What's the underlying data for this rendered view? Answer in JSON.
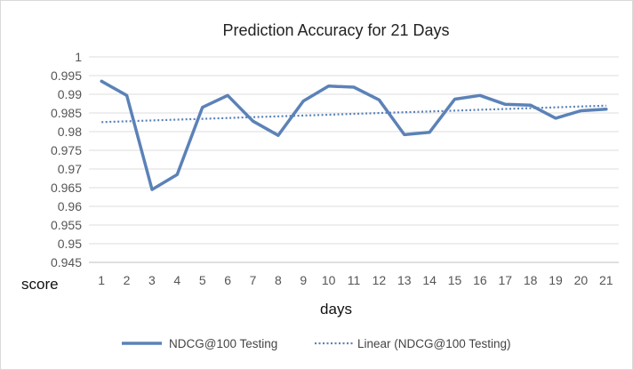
{
  "chart_data": {
    "type": "line",
    "title": "Prediction Accuracy for 21 Days",
    "xlabel": "days",
    "ylabel": "score",
    "x": [
      1,
      2,
      3,
      4,
      5,
      6,
      7,
      8,
      9,
      10,
      11,
      12,
      13,
      14,
      15,
      16,
      17,
      18,
      19,
      20,
      21
    ],
    "ylim": [
      0.945,
      1.0
    ],
    "yticks": [
      "1",
      "0.995",
      "0.99",
      "0.985",
      "0.98",
      "0.975",
      "0.97",
      "0.965",
      "0.96",
      "0.955",
      "0.95",
      "0.945"
    ],
    "ytick_values": [
      1.0,
      0.995,
      0.99,
      0.985,
      0.98,
      0.975,
      0.97,
      0.965,
      0.96,
      0.955,
      0.95,
      0.945
    ],
    "grid": true,
    "legend_position": "bottom",
    "series": [
      {
        "name": "NDCG@100 Testing",
        "color": "#5b82b8",
        "style": "solid",
        "values": [
          0.9935,
          0.9897,
          0.9645,
          0.9685,
          0.9865,
          0.9897,
          0.9828,
          0.979,
          0.9882,
          0.9922,
          0.9919,
          0.9885,
          0.9792,
          0.9798,
          0.9887,
          0.9897,
          0.9873,
          0.9871,
          0.9836,
          0.9856,
          0.986
        ]
      },
      {
        "name": "Linear (NDCG@100 Testing)",
        "color": "#5b82b8",
        "style": "dotted",
        "values": [
          0.98255,
          0.98277,
          0.98299,
          0.98321,
          0.98343,
          0.98365,
          0.98387,
          0.98409,
          0.98431,
          0.98453,
          0.98475,
          0.98497,
          0.98519,
          0.98541,
          0.98563,
          0.98585,
          0.98607,
          0.98629,
          0.98651,
          0.98673,
          0.98695
        ]
      }
    ]
  }
}
